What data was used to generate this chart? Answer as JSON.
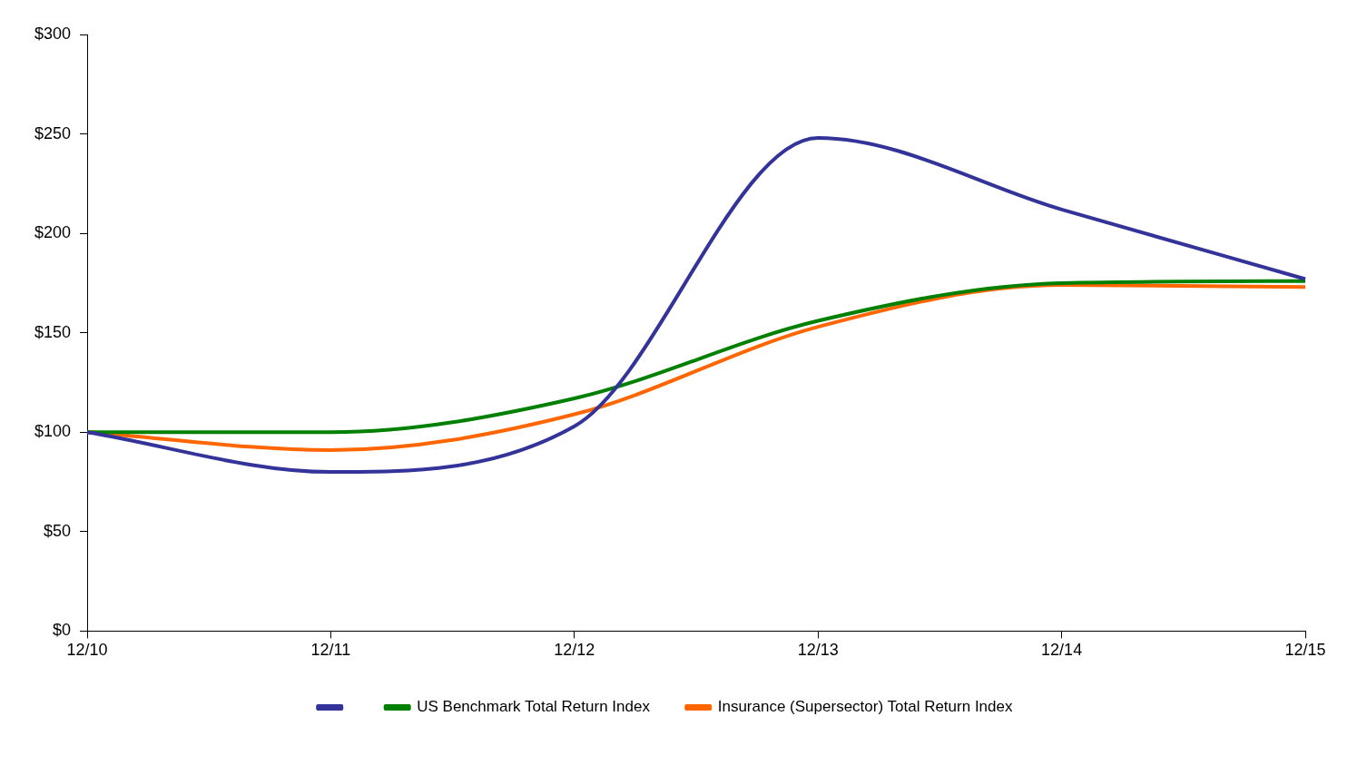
{
  "chart_data": {
    "type": "line",
    "categories": [
      "12/10",
      "12/11",
      "12/12",
      "12/13",
      "12/14",
      "12/15"
    ],
    "series": [
      {
        "color": "#333399",
        "values": [
          100,
          80,
          103,
          248,
          212,
          177
        ]
      },
      {
        "name": "US Benchmark Total Return Index",
        "color": "#008000",
        "values": [
          100,
          100,
          117,
          156,
          175,
          176
        ]
      },
      {
        "name": "Insurance (Supersector) Total Return Index",
        "color": "#ff6600",
        "values": [
          100,
          91,
          109,
          153,
          174,
          173
        ]
      }
    ],
    "ylim": [
      0,
      300
    ],
    "yticks": [
      {
        "value": 0,
        "label": "$0"
      },
      {
        "value": 50,
        "label": "$50"
      },
      {
        "value": 100,
        "label": "$100"
      },
      {
        "value": 150,
        "label": "$150"
      },
      {
        "value": 200,
        "label": "$200"
      },
      {
        "value": 250,
        "label": "$250"
      },
      {
        "value": 300,
        "label": "$300"
      }
    ],
    "grid": false,
    "legend": "bottom",
    "marker": "none",
    "line_style": "solid"
  }
}
